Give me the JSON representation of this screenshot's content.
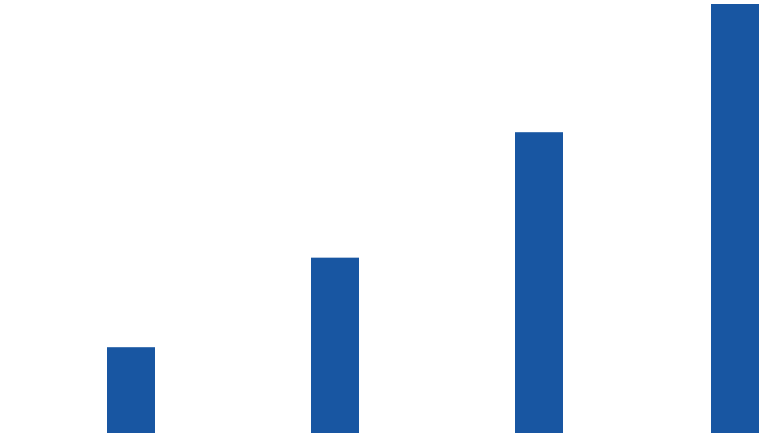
{
  "chart_data": {
    "type": "bar",
    "categories": [
      "",
      "",
      "",
      ""
    ],
    "values": [
      20,
      41,
      70,
      100
    ],
    "title": "",
    "xlabel": "",
    "ylabel": "",
    "ylim": [
      0,
      100
    ],
    "grid": false,
    "legend": "none",
    "bar_color": "#1856A2"
  }
}
